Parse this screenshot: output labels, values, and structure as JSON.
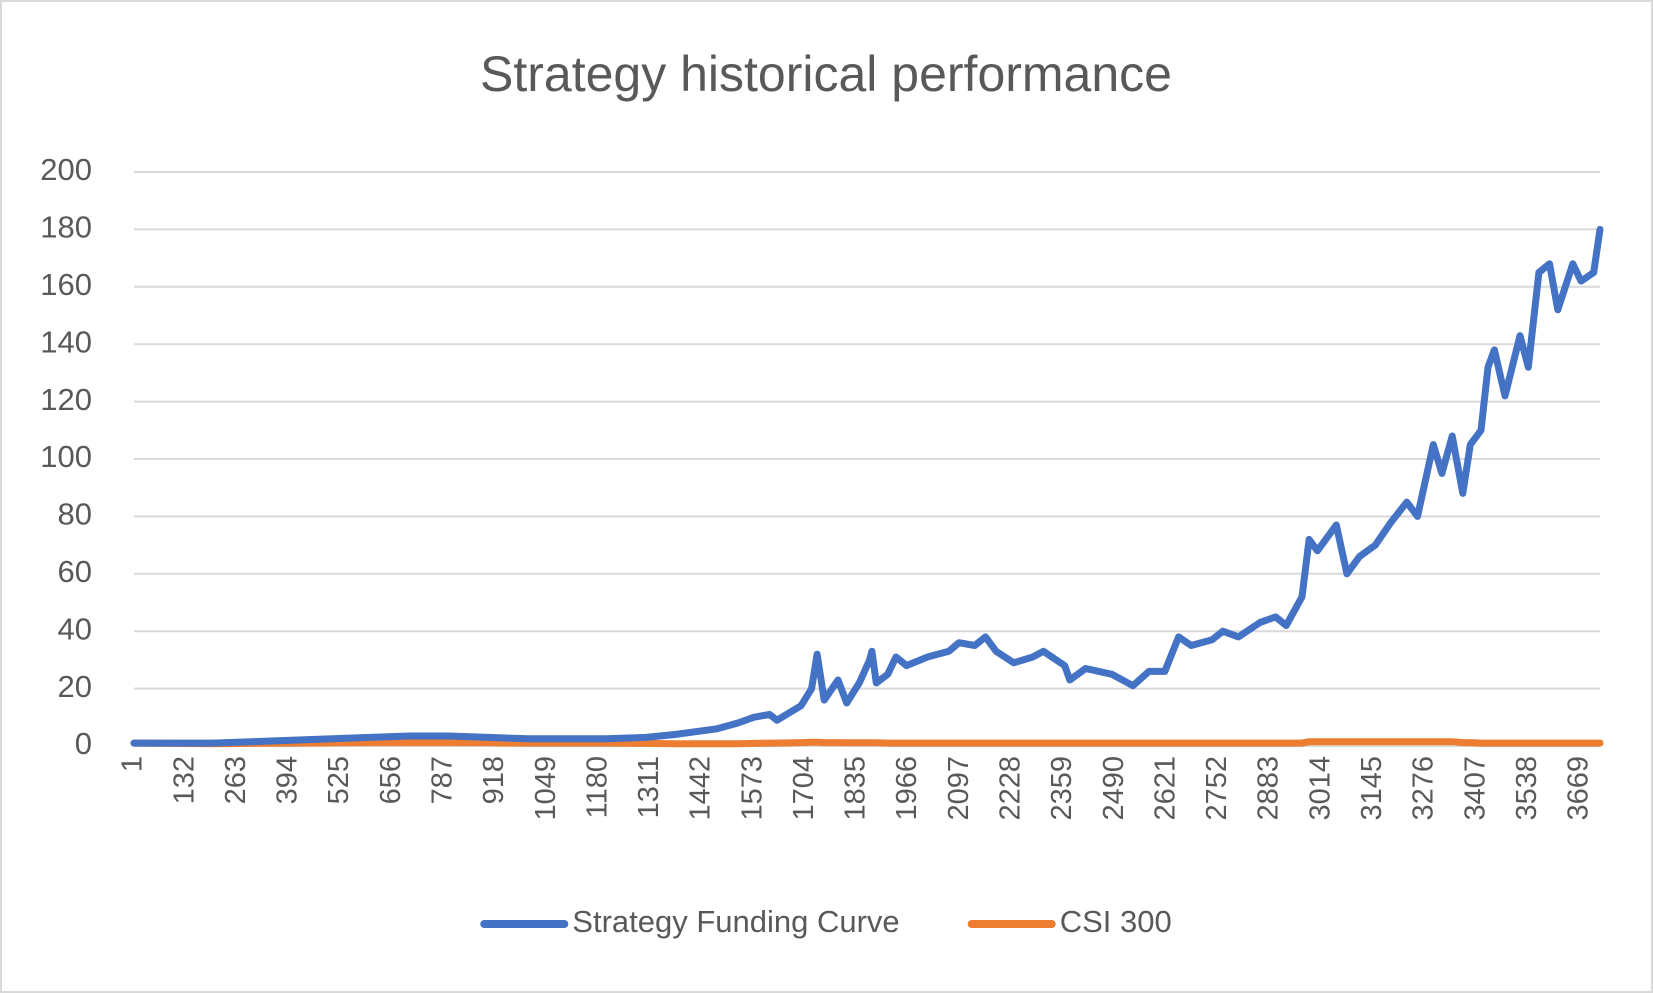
{
  "chart_data": {
    "type": "line",
    "title": "Strategy historical performance",
    "x": [
      1,
      200,
      400,
      600,
      700,
      800,
      900,
      1000,
      1200,
      1300,
      1373,
      1480,
      1533,
      1573,
      1613,
      1632,
      1693,
      1720,
      1734,
      1752,
      1787,
      1809,
      1841,
      1867,
      1873,
      1884,
      1913,
      1934,
      1961,
      2014,
      2068,
      2094,
      2134,
      2161,
      2188,
      2233,
      2281,
      2308,
      2362,
      2375,
      2415,
      2482,
      2535,
      2576,
      2616,
      2651,
      2683,
      2736,
      2763,
      2803,
      2857,
      2897,
      2924,
      2964,
      2982,
      3003,
      3051,
      3078,
      3110,
      3150,
      3190,
      3230,
      3257,
      3297,
      3319,
      3345,
      3372,
      3391,
      3418,
      3436,
      3452,
      3479,
      3517,
      3538,
      3565,
      3592,
      3613,
      3651,
      3672,
      3704,
      3720
    ],
    "series": [
      {
        "name": "Strategy Funding Curve",
        "color": "#4472c4",
        "values": [
          1,
          1,
          2,
          3,
          3.5,
          3.5,
          3,
          2.5,
          2.5,
          3,
          4,
          6,
          8,
          10,
          11,
          9,
          14,
          20,
          32,
          16,
          23,
          15,
          22,
          30,
          33,
          22,
          25,
          31,
          28,
          31,
          33,
          36,
          35,
          38,
          33,
          29,
          31,
          33,
          28,
          23,
          27,
          25,
          21,
          26,
          26,
          38,
          35,
          37,
          40,
          38,
          43,
          45,
          42,
          52,
          72,
          68,
          77,
          60,
          66,
          70,
          78,
          85,
          80,
          105,
          95,
          108,
          88,
          105,
          110,
          132,
          138,
          122,
          143,
          132,
          165,
          168,
          152,
          168,
          162,
          165,
          180
        ]
      },
      {
        "name": "CSI 300",
        "color": "#ed7d31",
        "values": [
          1,
          0.8,
          1,
          1.2,
          1.2,
          1.2,
          1.1,
          1,
          1,
          0.9,
          0.8,
          0.8,
          0.8,
          0.9,
          1,
          1,
          1.2,
          1.3,
          1.3,
          1.2,
          1.2,
          1.1,
          1.1,
          1.1,
          1.1,
          1.1,
          1,
          1,
          1,
          1,
          1,
          1,
          1,
          1,
          1,
          1,
          1,
          1,
          1,
          1,
          1,
          1,
          1,
          1,
          1,
          1,
          1,
          1,
          1,
          1,
          1,
          1,
          1,
          1,
          1.5,
          1.5,
          1.5,
          1.5,
          1.5,
          1.5,
          1.5,
          1.5,
          1.5,
          1.5,
          1.5,
          1.5,
          1.2,
          1.2,
          1,
          1,
          1,
          1,
          1,
          1,
          1,
          1,
          1,
          1,
          1,
          1,
          1
        ]
      }
    ],
    "xlim": [
      1,
      3720
    ],
    "xticks": [
      1,
      132,
      263,
      394,
      525,
      656,
      787,
      918,
      1049,
      1180,
      1311,
      1442,
      1573,
      1704,
      1835,
      1966,
      2097,
      2228,
      2359,
      2490,
      2621,
      2752,
      2883,
      3014,
      3145,
      3276,
      3407,
      3538,
      3669
    ],
    "ylim": [
      0,
      200
    ],
    "yticks": [
      0,
      20,
      40,
      60,
      80,
      100,
      120,
      140,
      160,
      180,
      200
    ],
    "grid": true,
    "legend": "bottom"
  }
}
